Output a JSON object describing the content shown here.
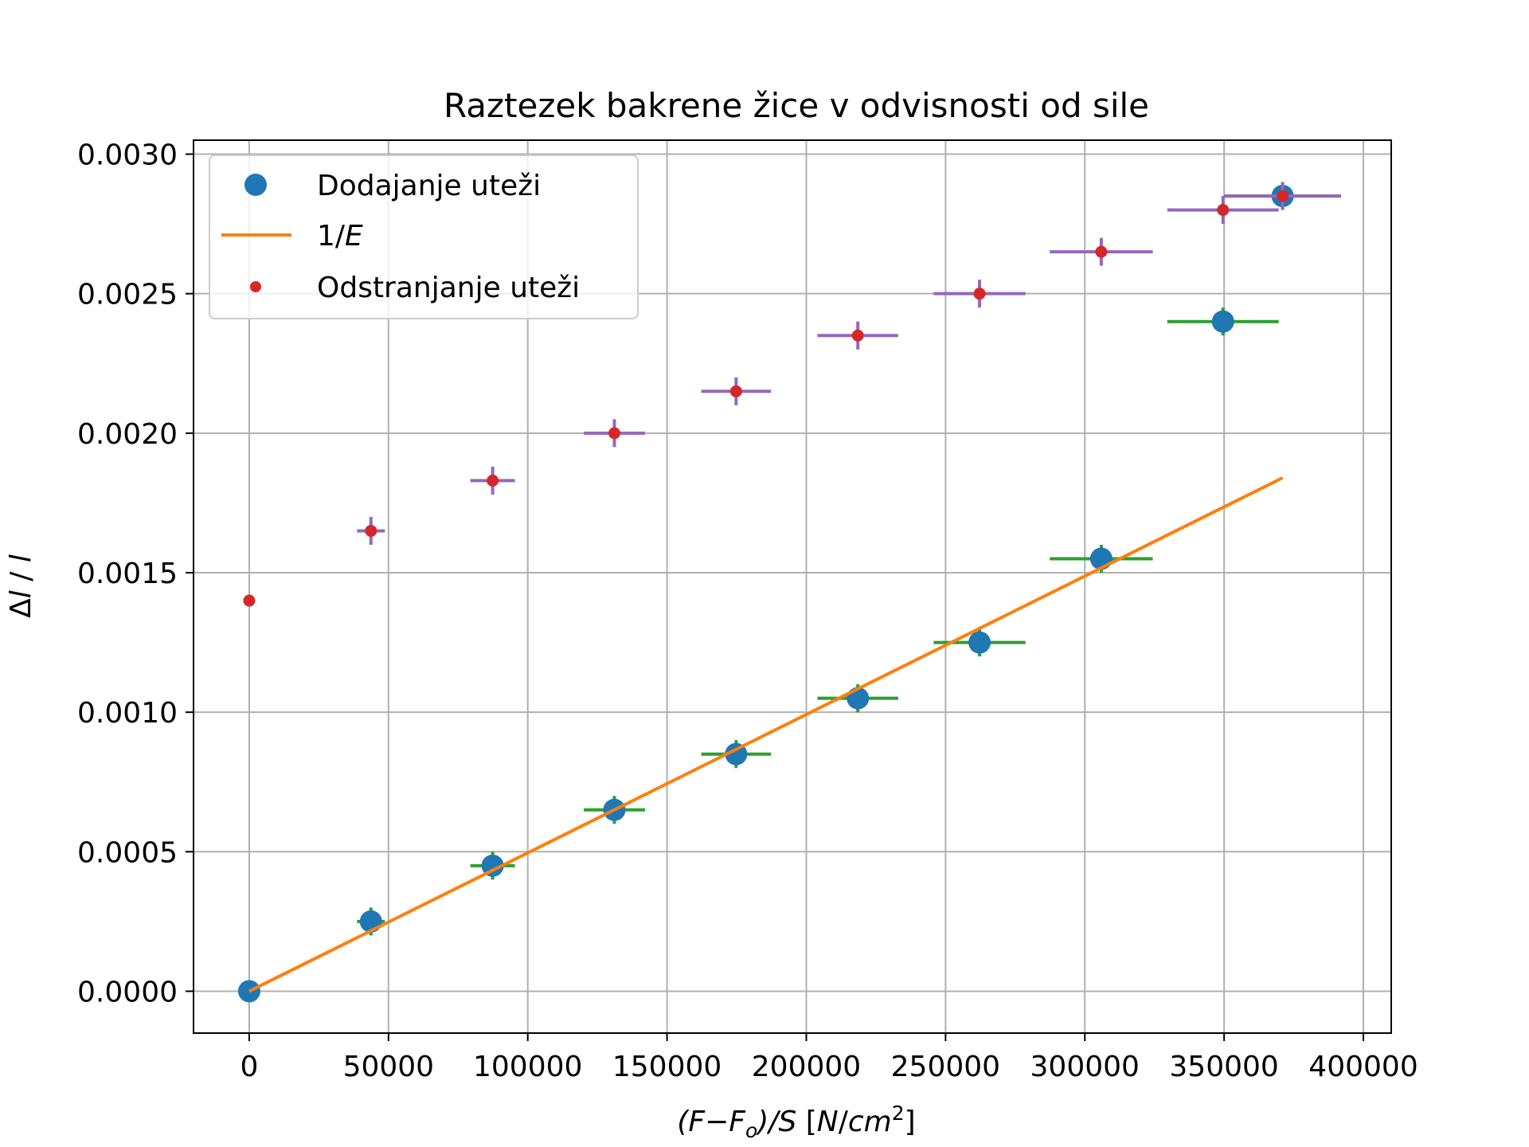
{
  "chart_data": {
    "type": "scatter",
    "title": "Raztezek bakrene žice v odvisnosti od sile",
    "xlabel": "(F−F_o)/S [N/cm^2]",
    "ylabel": "Δl / l",
    "xlim": [
      -20000,
      410000
    ],
    "ylim": [
      -0.00015,
      0.00305
    ],
    "x_ticks": [
      0,
      50000,
      100000,
      150000,
      200000,
      250000,
      300000,
      350000,
      400000
    ],
    "x_tick_labels": [
      "0",
      "50000",
      "100000",
      "150000",
      "200000",
      "250000",
      "300000",
      "350000",
      "400000"
    ],
    "y_ticks": [
      0.0,
      0.0005,
      0.001,
      0.0015,
      0.002,
      0.0025,
      0.003
    ],
    "y_tick_labels": [
      "0.0000",
      "0.0005",
      "0.0010",
      "0.0015",
      "0.0020",
      "0.0025",
      "0.0030"
    ],
    "grid": true,
    "legend_position": "top-left",
    "series": [
      {
        "name": "Dodajanje uteži",
        "kind": "points",
        "color": "#1f77b4",
        "errorbar_color": "#2ca02c",
        "x": [
          0,
          43700,
          87400,
          131100,
          174800,
          218500,
          262200,
          305900,
          349600,
          371000
        ],
        "y": [
          0.0,
          0.00025,
          0.00045,
          0.00065,
          0.00085,
          0.00105,
          0.00125,
          0.00155,
          0.0024,
          0.00285
        ],
        "xerr": [
          0,
          5000,
          8000,
          11000,
          12500,
          14500,
          16500,
          18500,
          20000,
          21000
        ],
        "yerr": [
          0,
          5e-05,
          5e-05,
          5e-05,
          5e-05,
          5e-05,
          5e-05,
          5e-05,
          5e-05,
          5e-05
        ]
      },
      {
        "name": "1/E",
        "kind": "line",
        "color": "#ff7f0e",
        "x": [
          0,
          371000
        ],
        "y": [
          0.0,
          0.00184
        ]
      },
      {
        "name": "Odstranjanje uteži",
        "kind": "points",
        "color": "#d62728",
        "errorbar_color": "#9467bd",
        "x": [
          0,
          43700,
          87400,
          131100,
          174800,
          218500,
          262200,
          305900,
          349600,
          371000
        ],
        "y": [
          0.0014,
          0.00165,
          0.00183,
          0.002,
          0.00215,
          0.00235,
          0.0025,
          0.00265,
          0.0028,
          0.00285
        ],
        "xerr": [
          0,
          5000,
          8000,
          11000,
          12500,
          14500,
          16500,
          18500,
          20000,
          21000
        ],
        "yerr": [
          0,
          5e-05,
          5e-05,
          5e-05,
          5e-05,
          5e-05,
          5e-05,
          5e-05,
          5e-05,
          5e-05
        ]
      }
    ]
  }
}
